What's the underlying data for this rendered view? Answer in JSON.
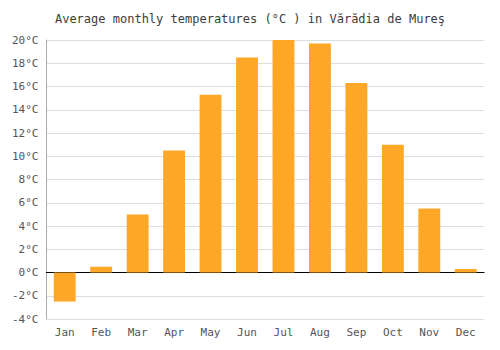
{
  "chart_data": {
    "type": "bar",
    "title": "Average monthly temperatures (°C ) in Vărădia de Mureş",
    "categories": [
      "Jan",
      "Feb",
      "Mar",
      "Apr",
      "May",
      "Jun",
      "Jul",
      "Aug",
      "Sep",
      "Oct",
      "Nov",
      "Dec"
    ],
    "values": [
      -2.5,
      0.5,
      5.0,
      10.5,
      15.3,
      18.5,
      20.0,
      19.7,
      16.3,
      11.0,
      5.5,
      0.3
    ],
    "color": "#FFA726",
    "ylim": [
      -4,
      20
    ],
    "yticks": [
      {
        "value": -4,
        "label": "-4°C"
      },
      {
        "value": -2,
        "label": "-2°C"
      },
      {
        "value": 0,
        "label": "0°C"
      },
      {
        "value": 2,
        "label": "2°C"
      },
      {
        "value": 4,
        "label": "4°C"
      },
      {
        "value": 6,
        "label": "6°C"
      },
      {
        "value": 8,
        "label": "8°C"
      },
      {
        "value": 10,
        "label": "10°C"
      },
      {
        "value": 12,
        "label": "12°C"
      },
      {
        "value": 14,
        "label": "14°C"
      },
      {
        "value": 16,
        "label": "16°C"
      },
      {
        "value": 18,
        "label": "18°C"
      },
      {
        "value": 20,
        "label": "20°C"
      }
    ],
    "grid": true
  }
}
